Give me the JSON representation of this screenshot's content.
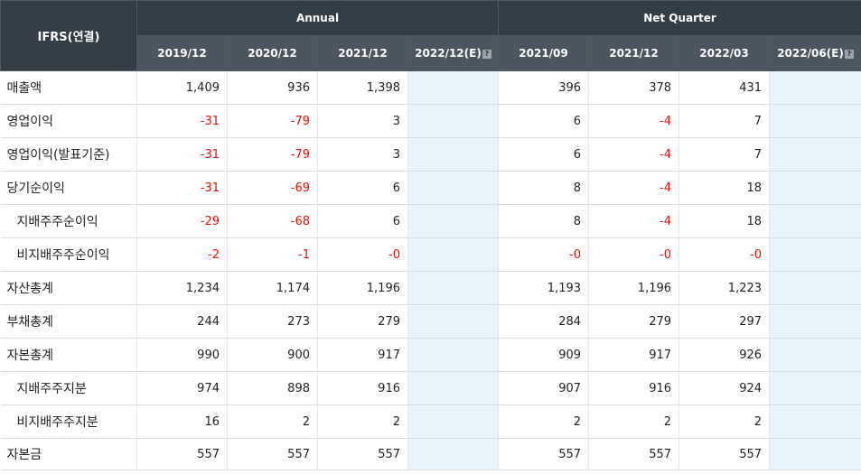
{
  "header": {
    "ifrs_label": "IFRS(연결)",
    "annual_label": "Annual",
    "quarter_label": "Net Quarter",
    "annual_periods": [
      "2019/12",
      "2020/12",
      "2021/12",
      "2022/12(E)"
    ],
    "quarter_periods": [
      "2021/09",
      "2021/12",
      "2022/03",
      "2022/06(E)"
    ],
    "help_glyph": "?"
  },
  "rows": [
    {
      "label": "매출액",
      "annual": [
        "1,409",
        "936",
        "1,398",
        ""
      ],
      "quarter": [
        "396",
        "378",
        "431",
        ""
      ]
    },
    {
      "label": "영업이익",
      "annual": [
        "-31",
        "-79",
        "3",
        ""
      ],
      "quarter": [
        "6",
        "-4",
        "7",
        ""
      ]
    },
    {
      "label": "영업이익(발표기준)",
      "annual": [
        "-31",
        "-79",
        "3",
        ""
      ],
      "quarter": [
        "6",
        "-4",
        "7",
        ""
      ]
    },
    {
      "label": "당기순이익",
      "annual": [
        "-31",
        "-69",
        "6",
        ""
      ],
      "quarter": [
        "8",
        "-4",
        "18",
        ""
      ]
    },
    {
      "label": "지배주주순이익",
      "annual": [
        "-29",
        "-68",
        "6",
        ""
      ],
      "quarter": [
        "8",
        "-4",
        "18",
        ""
      ]
    },
    {
      "label": "비지배주주순이익",
      "annual": [
        "-2",
        "-1",
        "-0",
        ""
      ],
      "quarter": [
        "-0",
        "-0",
        "-0",
        ""
      ]
    },
    {
      "label": "자산총계",
      "annual": [
        "1,234",
        "1,174",
        "1,196",
        ""
      ],
      "quarter": [
        "1,193",
        "1,196",
        "1,223",
        ""
      ]
    },
    {
      "label": "부채총계",
      "annual": [
        "244",
        "273",
        "279",
        ""
      ],
      "quarter": [
        "284",
        "279",
        "297",
        ""
      ]
    },
    {
      "label": "자본총계",
      "annual": [
        "990",
        "900",
        "917",
        ""
      ],
      "quarter": [
        "909",
        "917",
        "926",
        ""
      ]
    },
    {
      "label": "지배주주지분",
      "annual": [
        "974",
        "898",
        "916",
        ""
      ],
      "quarter": [
        "907",
        "916",
        "924",
        ""
      ]
    },
    {
      "label": "비지배주주지분",
      "annual": [
        "16",
        "2",
        "2",
        ""
      ],
      "quarter": [
        "2",
        "2",
        "2",
        ""
      ]
    },
    {
      "label": "자본금",
      "annual": [
        "557",
        "557",
        "557",
        ""
      ],
      "quarter": [
        "557",
        "557",
        "557",
        ""
      ]
    }
  ],
  "colors": {
    "header_dark": "#333d46",
    "header_mid": "#4c5660",
    "negative": "#e8120c",
    "estimate_bg": "#e9f4fa"
  }
}
